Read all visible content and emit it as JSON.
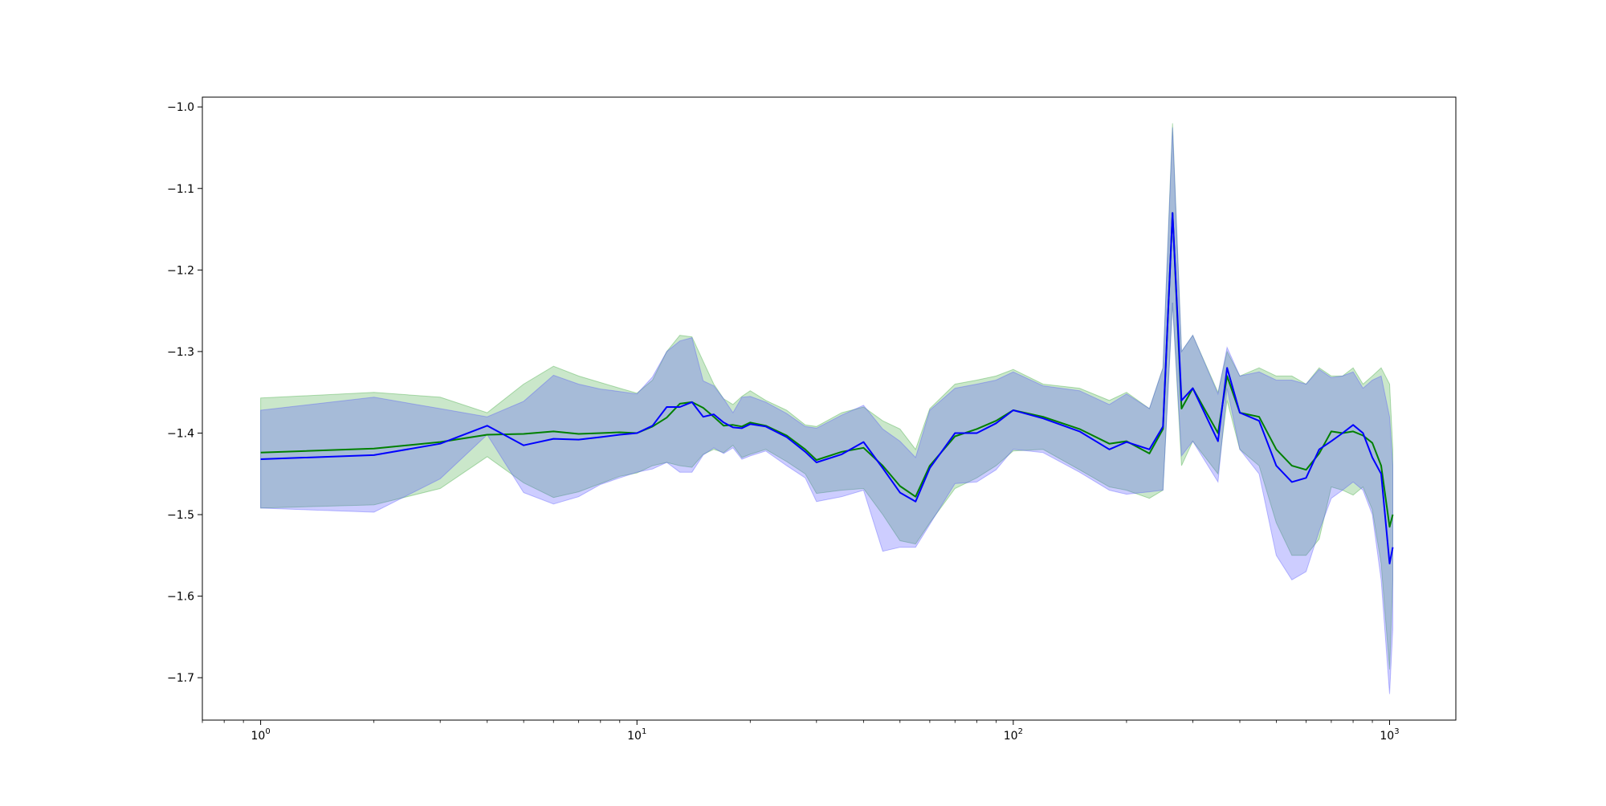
{
  "chart_data": {
    "type": "line",
    "title": "",
    "xlabel": "",
    "ylabel": "",
    "xscale": "log",
    "xlim": [
      0.7,
      1500
    ],
    "ylim": [
      -1.752,
      -0.988
    ],
    "grid": false,
    "legend": "none",
    "x_ticks": [
      {
        "value": 1,
        "base": "10",
        "exp": "0"
      },
      {
        "value": 10,
        "base": "10",
        "exp": "1"
      },
      {
        "value": 100,
        "base": "10",
        "exp": "2"
      },
      {
        "value": 1000,
        "base": "10",
        "exp": "3"
      }
    ],
    "y_ticks": [
      {
        "value": -1.0,
        "label": "−1.0"
      },
      {
        "value": -1.1,
        "label": "−1.1"
      },
      {
        "value": -1.2,
        "label": "−1.2"
      },
      {
        "value": -1.3,
        "label": "−1.3"
      },
      {
        "value": -1.4,
        "label": "−1.4"
      },
      {
        "value": -1.5,
        "label": "−1.5"
      },
      {
        "value": -1.6,
        "label": "−1.6"
      },
      {
        "value": -1.7,
        "label": "−1.7"
      }
    ],
    "series": [
      {
        "color": "#008000",
        "band_color": "#2ca02c",
        "band_opacity": 0.25,
        "x": [
          1,
          2,
          3,
          4,
          5,
          6,
          7,
          8,
          9,
          10,
          11,
          12,
          13,
          14,
          15,
          16,
          17,
          18,
          19,
          20,
          22,
          25,
          28,
          30,
          35,
          40,
          45,
          50,
          55,
          60,
          70,
          80,
          90,
          100,
          120,
          150,
          180,
          200,
          230,
          250,
          265,
          280,
          300,
          350,
          370,
          400,
          450,
          500,
          550,
          600,
          650,
          700,
          750,
          800,
          850,
          900,
          950,
          1000,
          1020
        ],
        "mean": [
          -1.424,
          -1.419,
          -1.411,
          -1.402,
          -1.401,
          -1.398,
          -1.401,
          -1.4,
          -1.399,
          -1.4,
          -1.392,
          -1.381,
          -1.364,
          -1.362,
          -1.369,
          -1.38,
          -1.391,
          -1.39,
          -1.392,
          -1.387,
          -1.391,
          -1.403,
          -1.42,
          -1.433,
          -1.423,
          -1.418,
          -1.44,
          -1.465,
          -1.478,
          -1.44,
          -1.404,
          -1.395,
          -1.385,
          -1.372,
          -1.38,
          -1.395,
          -1.413,
          -1.41,
          -1.425,
          -1.395,
          -1.13,
          -1.37,
          -1.345,
          -1.4,
          -1.33,
          -1.375,
          -1.38,
          -1.42,
          -1.44,
          -1.445,
          -1.425,
          -1.398,
          -1.4,
          -1.398,
          -1.403,
          -1.412,
          -1.44,
          -1.515,
          -1.5
        ],
        "upper": [
          -1.357,
          -1.35,
          -1.356,
          -1.375,
          -1.34,
          -1.318,
          -1.33,
          -1.338,
          -1.345,
          -1.351,
          -1.335,
          -1.3,
          -1.28,
          -1.282,
          -1.312,
          -1.34,
          -1.358,
          -1.365,
          -1.355,
          -1.348,
          -1.36,
          -1.372,
          -1.39,
          -1.392,
          -1.375,
          -1.368,
          -1.385,
          -1.395,
          -1.42,
          -1.37,
          -1.34,
          -1.335,
          -1.33,
          -1.322,
          -1.34,
          -1.345,
          -1.36,
          -1.35,
          -1.37,
          -1.32,
          -1.02,
          -1.3,
          -1.28,
          -1.35,
          -1.3,
          -1.33,
          -1.32,
          -1.33,
          -1.33,
          -1.34,
          -1.32,
          -1.33,
          -1.33,
          -1.32,
          -1.34,
          -1.33,
          -1.32,
          -1.34,
          -1.42
        ],
        "lower": [
          -1.492,
          -1.488,
          -1.468,
          -1.429,
          -1.461,
          -1.479,
          -1.472,
          -1.462,
          -1.453,
          -1.449,
          -1.44,
          -1.436,
          -1.44,
          -1.442,
          -1.426,
          -1.42,
          -1.424,
          -1.415,
          -1.43,
          -1.426,
          -1.42,
          -1.435,
          -1.45,
          -1.474,
          -1.47,
          -1.468,
          -1.5,
          -1.532,
          -1.536,
          -1.51,
          -1.468,
          -1.455,
          -1.44,
          -1.422,
          -1.42,
          -1.445,
          -1.466,
          -1.47,
          -1.48,
          -1.47,
          -1.24,
          -1.44,
          -1.41,
          -1.45,
          -1.36,
          -1.42,
          -1.44,
          -1.51,
          -1.55,
          -1.55,
          -1.53,
          -1.466,
          -1.47,
          -1.476,
          -1.466,
          -1.494,
          -1.56,
          -1.69,
          -1.58
        ]
      },
      {
        "color": "#0000ff",
        "band_color": "#4a4aff",
        "band_opacity": 0.28,
        "x": [
          1,
          2,
          3,
          4,
          5,
          6,
          7,
          8,
          9,
          10,
          11,
          12,
          13,
          14,
          15,
          16,
          17,
          18,
          19,
          20,
          22,
          25,
          28,
          30,
          35,
          40,
          45,
          50,
          55,
          60,
          70,
          80,
          90,
          100,
          120,
          150,
          180,
          200,
          230,
          250,
          265,
          280,
          300,
          350,
          370,
          400,
          450,
          500,
          550,
          600,
          650,
          700,
          750,
          800,
          850,
          900,
          950,
          1000,
          1020
        ],
        "mean": [
          -1.432,
          -1.427,
          -1.413,
          -1.391,
          -1.415,
          -1.407,
          -1.408,
          -1.405,
          -1.402,
          -1.4,
          -1.391,
          -1.368,
          -1.368,
          -1.362,
          -1.38,
          -1.377,
          -1.387,
          -1.393,
          -1.394,
          -1.389,
          -1.392,
          -1.405,
          -1.423,
          -1.436,
          -1.426,
          -1.411,
          -1.443,
          -1.473,
          -1.484,
          -1.443,
          -1.4,
          -1.4,
          -1.388,
          -1.372,
          -1.382,
          -1.398,
          -1.42,
          -1.411,
          -1.42,
          -1.392,
          -1.13,
          -1.36,
          -1.345,
          -1.41,
          -1.32,
          -1.375,
          -1.385,
          -1.44,
          -1.46,
          -1.455,
          -1.42,
          -1.41,
          -1.4,
          -1.39,
          -1.4,
          -1.43,
          -1.45,
          -1.56,
          -1.54
        ],
        "upper": [
          -1.372,
          -1.356,
          -1.37,
          -1.38,
          -1.361,
          -1.329,
          -1.34,
          -1.346,
          -1.349,
          -1.352,
          -1.331,
          -1.3,
          -1.287,
          -1.283,
          -1.336,
          -1.342,
          -1.358,
          -1.375,
          -1.356,
          -1.355,
          -1.362,
          -1.376,
          -1.392,
          -1.394,
          -1.378,
          -1.366,
          -1.395,
          -1.41,
          -1.43,
          -1.372,
          -1.345,
          -1.34,
          -1.335,
          -1.325,
          -1.342,
          -1.348,
          -1.365,
          -1.352,
          -1.37,
          -1.32,
          -1.025,
          -1.3,
          -1.28,
          -1.352,
          -1.295,
          -1.33,
          -1.325,
          -1.335,
          -1.335,
          -1.34,
          -1.322,
          -1.332,
          -1.33,
          -1.325,
          -1.345,
          -1.335,
          -1.33,
          -1.38,
          -1.44
        ],
        "lower": [
          -1.492,
          -1.497,
          -1.456,
          -1.402,
          -1.473,
          -1.487,
          -1.478,
          -1.463,
          -1.455,
          -1.448,
          -1.444,
          -1.436,
          -1.448,
          -1.448,
          -1.427,
          -1.418,
          -1.425,
          -1.418,
          -1.432,
          -1.428,
          -1.422,
          -1.44,
          -1.455,
          -1.484,
          -1.478,
          -1.47,
          -1.545,
          -1.54,
          -1.54,
          -1.512,
          -1.462,
          -1.46,
          -1.445,
          -1.42,
          -1.424,
          -1.448,
          -1.47,
          -1.475,
          -1.472,
          -1.47,
          -1.24,
          -1.428,
          -1.41,
          -1.46,
          -1.345,
          -1.42,
          -1.45,
          -1.55,
          -1.58,
          -1.57,
          -1.52,
          -1.48,
          -1.47,
          -1.46,
          -1.47,
          -1.5,
          -1.58,
          -1.72,
          -1.64
        ]
      }
    ]
  }
}
